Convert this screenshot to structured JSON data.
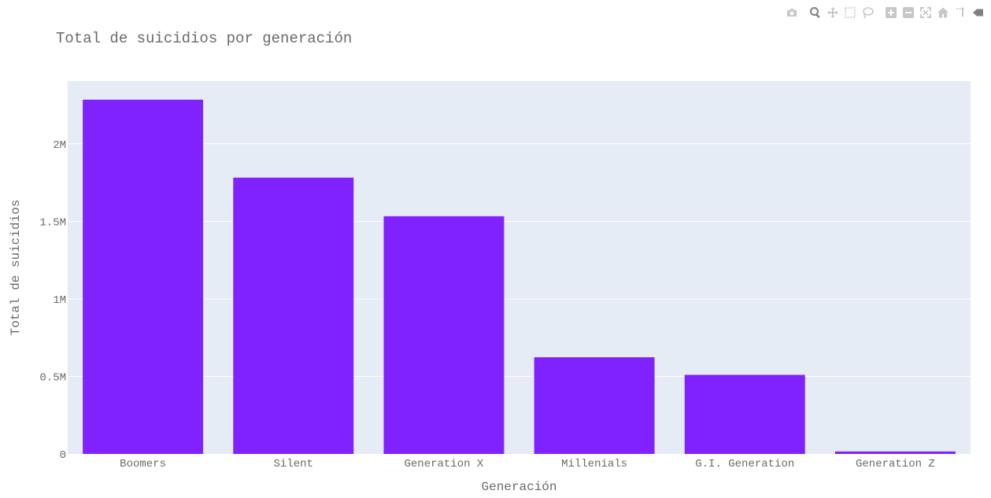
{
  "modebar": {
    "buttons": [
      {
        "name": "camera-icon",
        "title": "Download plot as a png"
      },
      {
        "name": "zoom-icon",
        "title": "Zoom"
      },
      {
        "name": "pan-icon",
        "title": "Pan"
      },
      {
        "name": "box-select-icon",
        "title": "Box Select"
      },
      {
        "name": "lasso-select-icon",
        "title": "Lasso Select"
      },
      {
        "name": "zoom-in-icon",
        "title": "Zoom in"
      },
      {
        "name": "zoom-out-icon",
        "title": "Zoom out"
      },
      {
        "name": "autoscale-icon",
        "title": "Autoscale"
      },
      {
        "name": "home-icon",
        "title": "Reset axes"
      },
      {
        "name": "spike-lines-icon",
        "title": "Toggle Spike Lines"
      },
      {
        "name": "hover-closest-icon",
        "title": "Show closest data on hover"
      }
    ]
  },
  "chart_data": {
    "type": "bar",
    "title": "Total de suicidios por generación",
    "xlabel": "Generación",
    "ylabel": "Total de suicidios",
    "categories": [
      "Boomers",
      "Silent",
      "Generation X",
      "Millenials",
      "G.I. Generation",
      "Generation Z"
    ],
    "values": [
      2284498,
      1781744,
      1532804,
      623459,
      510009,
      15906
    ],
    "ylim": [
      0,
      2404735
    ],
    "yticks": [
      0,
      500000,
      1000000,
      1500000,
      2000000
    ],
    "ytick_labels": [
      "0",
      "0.5M",
      "1M",
      "1.5M",
      "2M"
    ],
    "grid": true,
    "legend": "none",
    "colors": {
      "bar": "#7f22fe",
      "plot_bg": "#e5ecf6",
      "grid": "#ffffff",
      "text": "#6a6a6a"
    }
  }
}
